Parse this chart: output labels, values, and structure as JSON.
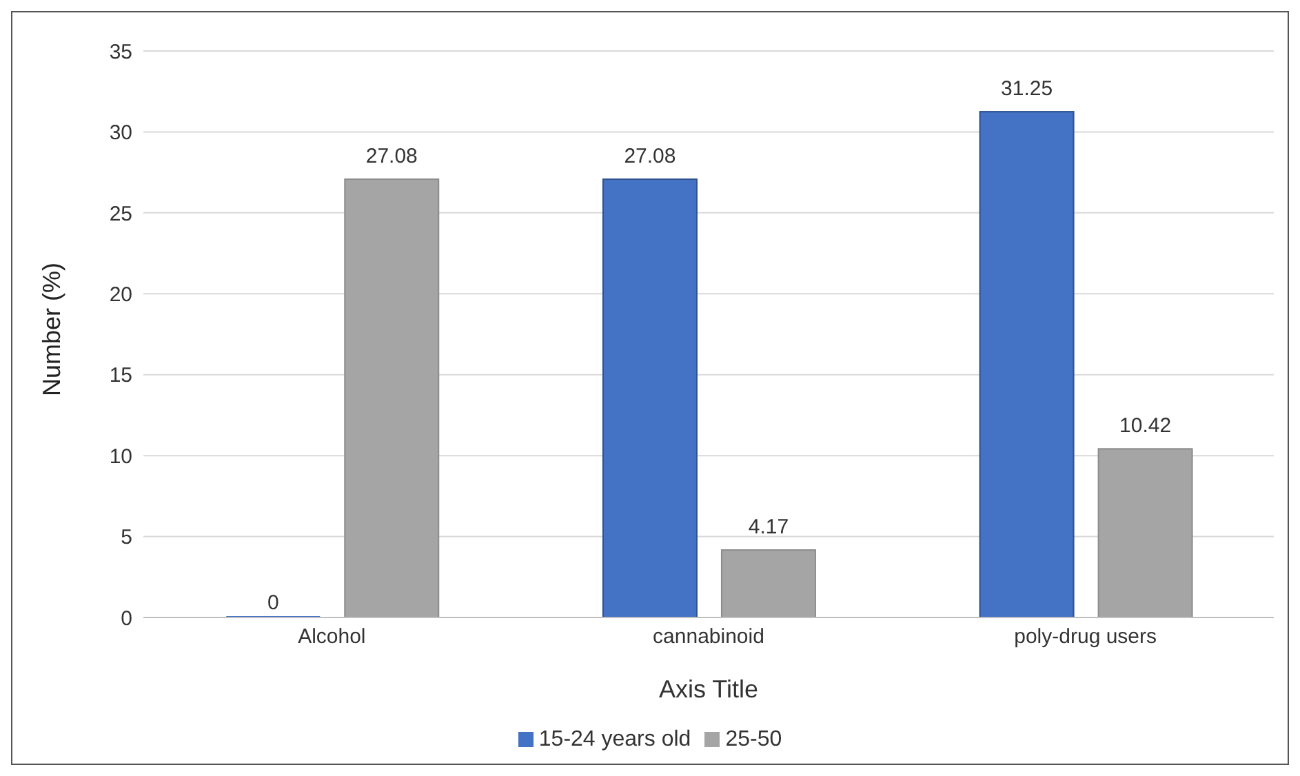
{
  "chart_data": {
    "type": "bar",
    "xlabel": "Axis Title",
    "ylabel": "Number (%)",
    "categories": [
      "Alcohol",
      "cannabinoid",
      "poly-drug users"
    ],
    "series": [
      {
        "name": "15-24 years old",
        "color": "#4472c4",
        "values": [
          0,
          27.08,
          31.25
        ]
      },
      {
        "name": "25-50",
        "color": "#a5a5a5",
        "values": [
          27.08,
          4.17,
          10.42
        ]
      }
    ],
    "ylim": [
      0,
      35
    ],
    "yticks": [
      0,
      5,
      10,
      15,
      20,
      25,
      30,
      35
    ],
    "grid": "y",
    "legend": "bottom",
    "data_labels": true
  }
}
